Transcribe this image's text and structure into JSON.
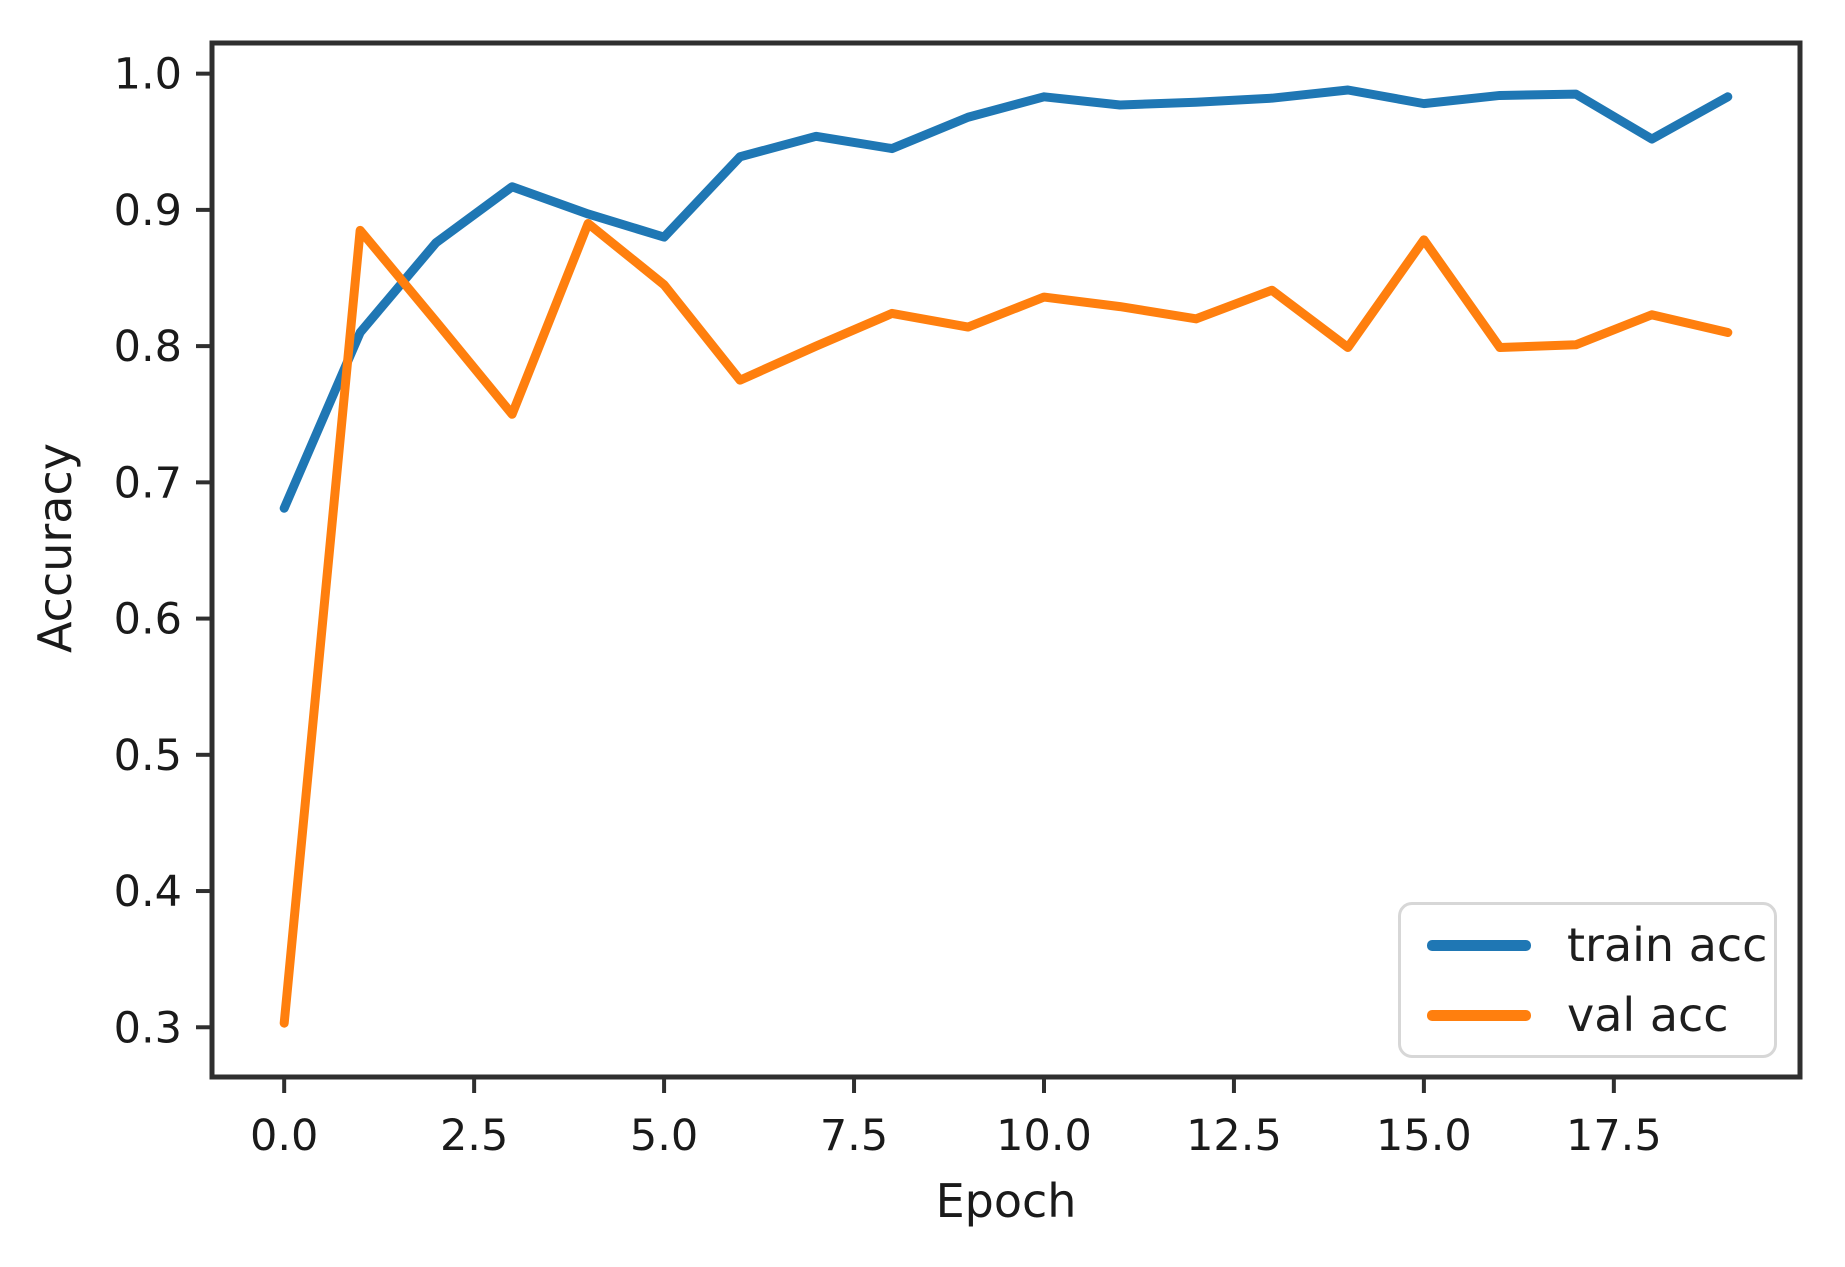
{
  "chart_data": {
    "type": "line",
    "title": "",
    "xlabel": "Epoch",
    "ylabel": "Accuracy",
    "x": [
      0,
      1,
      2,
      3,
      4,
      5,
      6,
      7,
      8,
      9,
      10,
      11,
      12,
      13,
      14,
      15,
      16,
      17,
      18,
      19
    ],
    "series": [
      {
        "name": "train acc",
        "color": "#1f77b4",
        "values": [
          0.681,
          0.81,
          0.876,
          0.917,
          0.897,
          0.88,
          0.939,
          0.954,
          0.945,
          0.968,
          0.983,
          0.977,
          0.979,
          0.982,
          0.988,
          0.978,
          0.984,
          0.985,
          0.952,
          0.983
        ]
      },
      {
        "name": "val acc",
        "color": "#ff7f0e",
        "values": [
          0.303,
          0.885,
          0.818,
          0.75,
          0.89,
          0.845,
          0.775,
          0.8,
          0.824,
          0.814,
          0.836,
          0.829,
          0.82,
          0.841,
          0.799,
          0.878,
          0.799,
          0.801,
          0.823,
          0.81
        ]
      }
    ],
    "xticks": [
      0.0,
      2.5,
      5.0,
      7.5,
      10.0,
      12.5,
      15.0,
      17.5
    ],
    "xtick_labels": [
      "0.0",
      "2.5",
      "5.0",
      "7.5",
      "10.0",
      "12.5",
      "15.0",
      "17.5"
    ],
    "yticks": [
      0.3,
      0.4,
      0.5,
      0.6,
      0.7,
      0.8,
      0.9,
      1.0
    ],
    "ytick_labels": [
      "0.3",
      "0.4",
      "0.5",
      "0.6",
      "0.7",
      "0.8",
      "0.9",
      "1.0"
    ],
    "xlim": [
      -0.95,
      19.95
    ],
    "ylim": [
      0.2635,
      1.0225
    ],
    "grid": false,
    "legend_position": "lower right",
    "axis_color": "#2f2f2f",
    "tick_label_color": "#1a1a1a"
  }
}
